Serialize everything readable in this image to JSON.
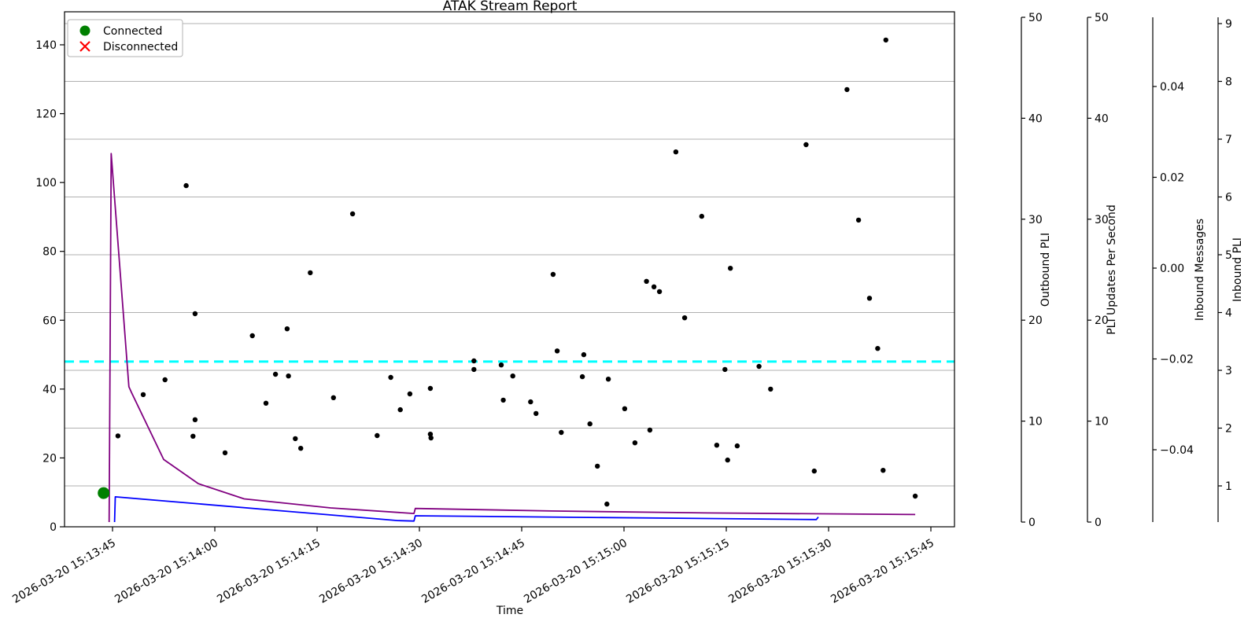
{
  "title": "ATAK Stream Report",
  "xlabel": "Time",
  "chart_data": {
    "type": "scatter+line",
    "title": "ATAK Stream Report",
    "xlabel": "Time",
    "grid": {
      "visible": true,
      "from_axis": "Inbound PLI",
      "color": "#b0b0b0"
    },
    "x_axis": {
      "unit": "seconds after first tick",
      "ticks": [
        {
          "t": 0,
          "label": "2026-03-20 15:13:45"
        },
        {
          "t": 15,
          "label": "2026-03-20 15:14:00"
        },
        {
          "t": 30,
          "label": "2026-03-20 15:14:15"
        },
        {
          "t": 45,
          "label": "2026-03-20 15:14:30"
        },
        {
          "t": 60,
          "label": "2026-03-20 15:14:45"
        },
        {
          "t": 75,
          "label": "2026-03-20 15:15:00"
        },
        {
          "t": 90,
          "label": "2026-03-20 15:15:15"
        },
        {
          "t": 105,
          "label": "2026-03-20 15:15:30"
        },
        {
          "t": 120,
          "label": "2026-03-20 15:15:45"
        }
      ],
      "range_seconds": [
        -7,
        120.8
      ]
    },
    "left_axis": {
      "ticks": [
        0,
        20,
        40,
        60,
        80,
        100,
        120,
        140
      ],
      "range": [
        0,
        149.6
      ]
    },
    "right_axes": [
      {
        "label": "Outbound PLI",
        "color": "#800080",
        "ticks": [
          0,
          10,
          20,
          30,
          40,
          50
        ],
        "range": [
          0,
          50
        ]
      },
      {
        "label": "PLI Updates Per Second",
        "color": "#0000ff",
        "ticks": [
          0,
          10,
          20,
          30,
          40,
          50
        ],
        "range": [
          0,
          50
        ]
      },
      {
        "label": "Inbound Messages",
        "color": "#ff0000",
        "tick_color": "#000000",
        "ticks": [
          {
            "v": 0.04,
            "label": "0.04"
          },
          {
            "v": 0.02,
            "label": "0.02"
          },
          {
            "v": 0,
            "label": "0.00"
          },
          {
            "v": -0.02,
            "label": "−0.02"
          },
          {
            "v": -0.04,
            "label": "−0.04"
          }
        ],
        "range": [
          -0.05,
          0.05
        ]
      },
      {
        "label": "Inbound PLI",
        "color": "#000000",
        "ticks": [
          1,
          2,
          3,
          4,
          5,
          6,
          7,
          8,
          9
        ],
        "range": [
          0.13,
          9.87
        ]
      }
    ],
    "legend": [
      {
        "label": "Connected",
        "marker": "circle",
        "color": "#008000"
      },
      {
        "label": "Disconnected",
        "marker": "x",
        "color": "#ff0000"
      }
    ],
    "threshold_line": {
      "axis": "left",
      "value": 48,
      "color": "#00ffff",
      "style": "dashed",
      "width": 3
    },
    "events": [
      {
        "type": "connected",
        "t": -1.3,
        "value": 9.8,
        "color": "#008000"
      }
    ],
    "scatter": {
      "name": "latency samples",
      "color": "#000000",
      "axis": "left",
      "points": [
        [
          0.8,
          26.4
        ],
        [
          4.5,
          38.4
        ],
        [
          7.7,
          42.7
        ],
        [
          10.8,
          99.1
        ],
        [
          11.8,
          26.3
        ],
        [
          12.1,
          31.1
        ],
        [
          12.1,
          61.9
        ],
        [
          16.5,
          21.5
        ],
        [
          20.5,
          55.5
        ],
        [
          22.5,
          35.9
        ],
        [
          23.9,
          44.3
        ],
        [
          25.6,
          57.5
        ],
        [
          25.8,
          43.8
        ],
        [
          26.8,
          25.6
        ],
        [
          27.6,
          22.8
        ],
        [
          29.0,
          73.8
        ],
        [
          32.4,
          37.5
        ],
        [
          35.2,
          90.9
        ],
        [
          38.8,
          26.5
        ],
        [
          40.8,
          43.4
        ],
        [
          42.2,
          34.0
        ],
        [
          43.6,
          38.6
        ],
        [
          46.6,
          40.2
        ],
        [
          46.6,
          26.9
        ],
        [
          46.7,
          25.8
        ],
        [
          53.0,
          48.2
        ],
        [
          53.0,
          45.7
        ],
        [
          57.0,
          47.0
        ],
        [
          57.3,
          36.8
        ],
        [
          58.7,
          43.8
        ],
        [
          61.3,
          36.3
        ],
        [
          62.1,
          32.9
        ],
        [
          64.6,
          73.3
        ],
        [
          65.2,
          51.1
        ],
        [
          65.8,
          27.4
        ],
        [
          68.9,
          43.6
        ],
        [
          69.1,
          50.0
        ],
        [
          70.0,
          29.9
        ],
        [
          71.1,
          17.6
        ],
        [
          72.5,
          6.6
        ],
        [
          72.7,
          42.9
        ],
        [
          75.1,
          34.3
        ],
        [
          76.6,
          24.4
        ],
        [
          78.3,
          71.3
        ],
        [
          78.8,
          28.1
        ],
        [
          79.4,
          69.7
        ],
        [
          80.2,
          68.3
        ],
        [
          82.6,
          108.9
        ],
        [
          83.9,
          60.7
        ],
        [
          86.4,
          90.2
        ],
        [
          88.6,
          23.7
        ],
        [
          89.8,
          45.7
        ],
        [
          90.2,
          19.4
        ],
        [
          90.6,
          75.1
        ],
        [
          91.6,
          23.5
        ],
        [
          94.8,
          46.6
        ],
        [
          96.5,
          40.0
        ],
        [
          101.7,
          111.0
        ],
        [
          102.9,
          16.2
        ],
        [
          107.7,
          127.0
        ],
        [
          109.4,
          89.1
        ],
        [
          111.0,
          66.4
        ],
        [
          112.2,
          51.8
        ],
        [
          113.0,
          16.4
        ],
        [
          113.4,
          141.4
        ],
        [
          117.7,
          8.9
        ]
      ]
    },
    "series": [
      {
        "name": "Outbound PLI",
        "color": "#800080",
        "axis": "right-0",
        "width": 1.8,
        "points": [
          [
            -0.5,
            0
          ],
          [
            -0.2,
            36.5
          ],
          [
            2.4,
            13.4
          ],
          [
            2.8,
            12.8
          ],
          [
            7.5,
            6.2
          ],
          [
            12.6,
            3.8
          ],
          [
            19.3,
            2.3
          ],
          [
            32,
            1.4
          ],
          [
            44.2,
            0.85
          ],
          [
            44.4,
            1.35
          ],
          [
            64.3,
            1.1
          ],
          [
            87.3,
            0.9
          ],
          [
            117.7,
            0.75
          ]
        ]
      },
      {
        "name": "PLI Updates Per Second",
        "color": "#0000ff",
        "axis": "right-1",
        "width": 1.8,
        "points": [
          [
            0.3,
            0
          ],
          [
            0.4,
            2.5
          ],
          [
            41.8,
            0.15
          ],
          [
            44.2,
            0.1
          ],
          [
            44.4,
            0.62
          ],
          [
            103.2,
            0.25
          ],
          [
            103.5,
            0.5
          ]
        ]
      }
    ]
  }
}
